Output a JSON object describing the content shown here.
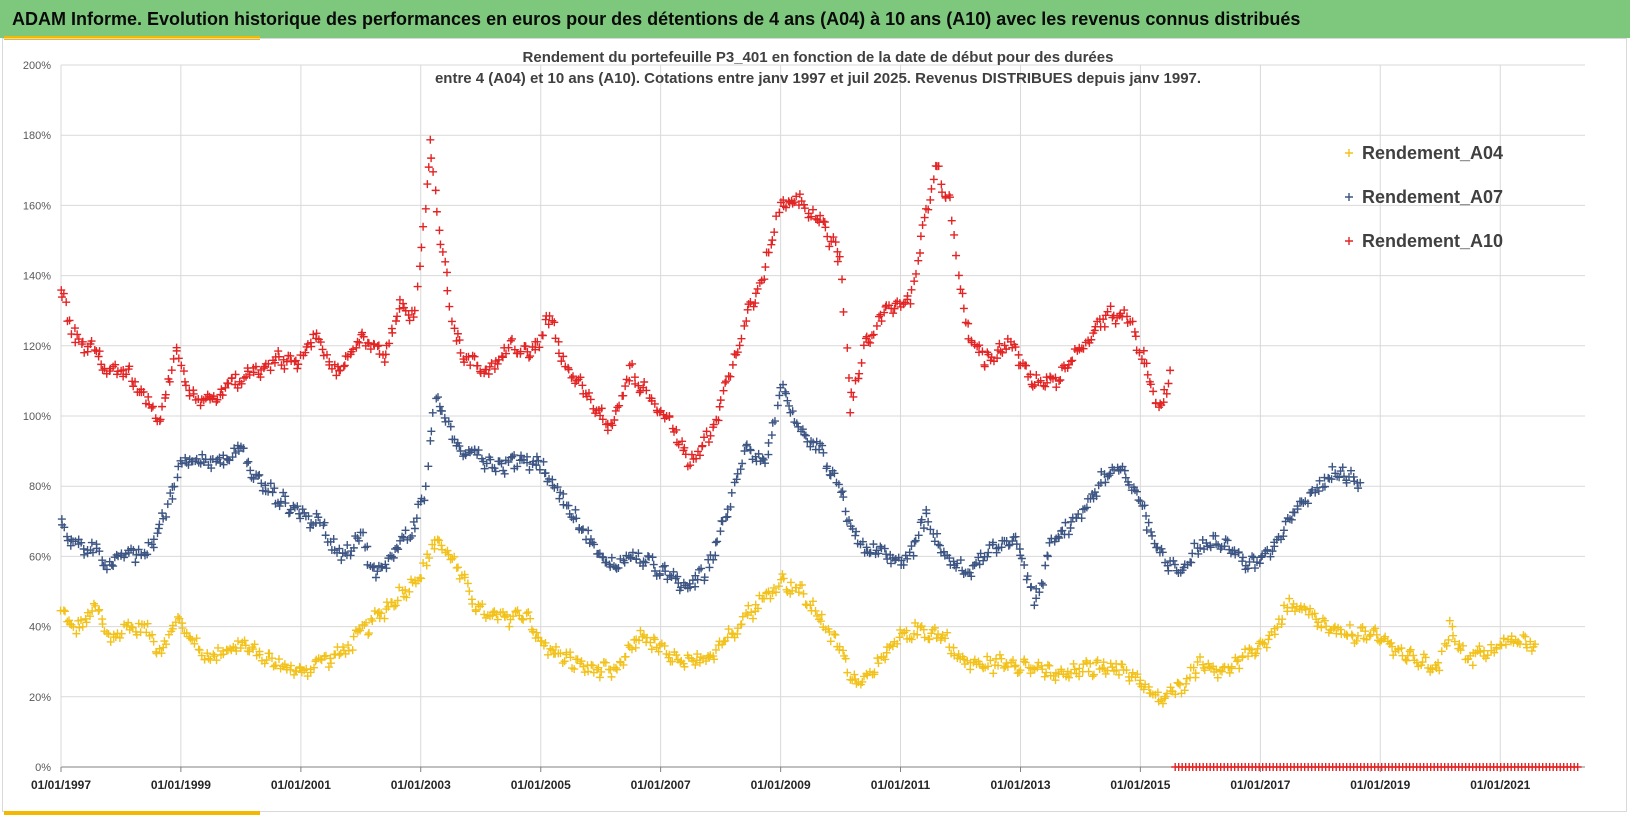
{
  "header": {
    "title": "ADAM Informe. Evolution historique des performances en euros pour des détentions de 4 ans (A04) à 10 ans (A10) avec les revenus connus distribués"
  },
  "chart_data": {
    "type": "scatter",
    "title_lines": [
      "Rendement du portefeuille P3_401 en fonction de la date de début pour des durées",
      "entre 4 (A04) et 10 ans (A10). Cotations entre janv 1997 et juil 2025. Revenus DISTRIBUES depuis janv 1997."
    ],
    "x_axis": {
      "type": "date",
      "min": "1997-01-01",
      "max": "2022-06-01",
      "tick_labels": [
        "01/01/1997",
        "01/01/1999",
        "01/01/2001",
        "01/01/2003",
        "01/01/2005",
        "01/01/2007",
        "01/01/2009",
        "01/01/2011",
        "01/01/2013",
        "01/01/2015",
        "01/01/2017",
        "01/01/2019",
        "01/01/2021"
      ],
      "grid": true
    },
    "y_axis": {
      "min": 0,
      "max": 2,
      "format": "percent",
      "tick_labels": [
        "0%",
        "20%",
        "40%",
        "60%",
        "80%",
        "100%",
        "120%",
        "140%",
        "160%",
        "180%",
        "200%"
      ],
      "grid": true
    },
    "legend_position": "top-right",
    "marker": "plus",
    "series": [
      {
        "name": "Rendement_A04",
        "color": "#f2c21b",
        "points": [
          [
            "1997-01-01",
            0.44
          ],
          [
            "1997-04-01",
            0.39
          ],
          [
            "1997-08-01",
            0.45
          ],
          [
            "1997-11-01",
            0.36
          ],
          [
            "1998-02-01",
            0.4
          ],
          [
            "1998-06-01",
            0.39
          ],
          [
            "1998-09-01",
            0.33
          ],
          [
            "1998-12-01",
            0.42
          ],
          [
            "1999-03-01",
            0.37
          ],
          [
            "1999-06-01",
            0.31
          ],
          [
            "1999-10-01",
            0.33
          ],
          [
            "2000-01-01",
            0.35
          ],
          [
            "2000-06-01",
            0.31
          ],
          [
            "2000-10-01",
            0.28
          ],
          [
            "2001-01-01",
            0.27
          ],
          [
            "2001-05-01",
            0.3
          ],
          [
            "2001-09-01",
            0.32
          ],
          [
            "2002-01-01",
            0.38
          ],
          [
            "2002-06-01",
            0.45
          ],
          [
            "2002-11-01",
            0.52
          ],
          [
            "2003-02-01",
            0.57
          ],
          [
            "2003-04-01",
            0.65
          ],
          [
            "2003-07-01",
            0.6
          ],
          [
            "2003-10-01",
            0.52
          ],
          [
            "2004-01-01",
            0.44
          ],
          [
            "2004-05-01",
            0.42
          ],
          [
            "2004-10-01",
            0.44
          ],
          [
            "2005-01-01",
            0.35
          ],
          [
            "2005-06-01",
            0.31
          ],
          [
            "2005-11-01",
            0.28
          ],
          [
            "2006-04-01",
            0.27
          ],
          [
            "2006-09-01",
            0.38
          ],
          [
            "2007-01-01",
            0.33
          ],
          [
            "2007-06-01",
            0.29
          ],
          [
            "2007-10-01",
            0.31
          ],
          [
            "2008-02-01",
            0.36
          ],
          [
            "2008-06-01",
            0.43
          ],
          [
            "2008-10-01",
            0.48
          ],
          [
            "2009-01-01",
            0.53
          ],
          [
            "2009-05-01",
            0.5
          ],
          [
            "2009-09-01",
            0.42
          ],
          [
            "2010-01-01",
            0.33
          ],
          [
            "2010-04-01",
            0.24
          ],
          [
            "2010-08-01",
            0.28
          ],
          [
            "2011-01-01",
            0.37
          ],
          [
            "2011-05-01",
            0.39
          ],
          [
            "2011-10-01",
            0.37
          ],
          [
            "2012-01-01",
            0.3
          ],
          [
            "2012-06-01",
            0.29
          ],
          [
            "2012-11-01",
            0.3
          ],
          [
            "2013-04-01",
            0.28
          ],
          [
            "2013-09-01",
            0.26
          ],
          [
            "2014-02-01",
            0.28
          ],
          [
            "2014-07-01",
            0.29
          ],
          [
            "2014-12-01",
            0.26
          ],
          [
            "2015-04-01",
            0.19
          ],
          [
            "2015-08-01",
            0.21
          ],
          [
            "2016-01-01",
            0.3
          ],
          [
            "2016-05-01",
            0.27
          ],
          [
            "2016-10-01",
            0.31
          ],
          [
            "2017-03-01",
            0.37
          ],
          [
            "2017-07-01",
            0.46
          ],
          [
            "2017-11-01",
            0.43
          ],
          [
            "2018-04-01",
            0.38
          ],
          [
            "2018-09-01",
            0.38
          ],
          [
            "2019-02-01",
            0.36
          ],
          [
            "2019-07-01",
            0.31
          ],
          [
            "2020-01-01",
            0.28
          ],
          [
            "2020-03-01",
            0.41
          ],
          [
            "2020-06-01",
            0.31
          ],
          [
            "2020-11-01",
            0.33
          ],
          [
            "2021-03-01",
            0.36
          ],
          [
            "2021-08-01",
            0.35
          ]
        ]
      },
      {
        "name": "Rendement_A07",
        "color": "#3d5583",
        "points": [
          [
            "1997-01-01",
            0.69
          ],
          [
            "1997-04-01",
            0.63
          ],
          [
            "1997-08-01",
            0.62
          ],
          [
            "1997-11-01",
            0.57
          ],
          [
            "1998-02-01",
            0.61
          ],
          [
            "1998-06-01",
            0.6
          ],
          [
            "1998-10-01",
            0.72
          ],
          [
            "1999-01-01",
            0.87
          ],
          [
            "1999-05-01",
            0.88
          ],
          [
            "1999-09-01",
            0.86
          ],
          [
            "2000-01-01",
            0.91
          ],
          [
            "2000-04-01",
            0.82
          ],
          [
            "2000-09-01",
            0.76
          ],
          [
            "2001-01-01",
            0.72
          ],
          [
            "2001-05-01",
            0.69
          ],
          [
            "2001-09-01",
            0.6
          ],
          [
            "2002-01-01",
            0.66
          ],
          [
            "2002-04-01",
            0.54
          ],
          [
            "2002-09-01",
            0.64
          ],
          [
            "2002-12-01",
            0.69
          ],
          [
            "2003-02-01",
            0.8
          ],
          [
            "2003-04-01",
            1.06
          ],
          [
            "2003-08-01",
            0.91
          ],
          [
            "2003-12-01",
            0.9
          ],
          [
            "2004-04-01",
            0.85
          ],
          [
            "2004-09-01",
            0.88
          ],
          [
            "2005-01-01",
            0.86
          ],
          [
            "2005-05-01",
            0.77
          ],
          [
            "2005-10-01",
            0.66
          ],
          [
            "2006-03-01",
            0.57
          ],
          [
            "2006-08-01",
            0.6
          ],
          [
            "2007-01-01",
            0.56
          ],
          [
            "2007-06-01",
            0.51
          ],
          [
            "2007-10-01",
            0.55
          ],
          [
            "2008-03-01",
            0.75
          ],
          [
            "2008-06-01",
            0.92
          ],
          [
            "2008-10-01",
            0.86
          ],
          [
            "2009-01-01",
            1.09
          ],
          [
            "2009-05-01",
            0.94
          ],
          [
            "2009-09-01",
            0.9
          ],
          [
            "2010-01-01",
            0.78
          ],
          [
            "2010-05-01",
            0.62
          ],
          [
            "2010-09-01",
            0.61
          ],
          [
            "2011-02-01",
            0.58
          ],
          [
            "2011-06-01",
            0.71
          ],
          [
            "2011-10-01",
            0.6
          ],
          [
            "2012-02-01",
            0.55
          ],
          [
            "2012-07-01",
            0.61
          ],
          [
            "2012-12-01",
            0.66
          ],
          [
            "2013-04-01",
            0.46
          ],
          [
            "2013-07-01",
            0.63
          ],
          [
            "2013-12-01",
            0.7
          ],
          [
            "2014-05-01",
            0.81
          ],
          [
            "2014-09-01",
            0.85
          ],
          [
            "2015-01-01",
            0.76
          ],
          [
            "2015-05-01",
            0.6
          ],
          [
            "2015-09-01",
            0.56
          ],
          [
            "2016-01-01",
            0.63
          ],
          [
            "2016-06-01",
            0.64
          ],
          [
            "2016-11-01",
            0.57
          ],
          [
            "2017-04-01",
            0.63
          ],
          [
            "2017-09-01",
            0.75
          ],
          [
            "2018-01-01",
            0.8
          ],
          [
            "2018-05-01",
            0.85
          ],
          [
            "2018-09-01",
            0.81
          ]
        ]
      },
      {
        "name": "Rendement_A10",
        "color": "#e32424",
        "points": [
          [
            "1997-01-01",
            1.36
          ],
          [
            "1997-04-01",
            1.22
          ],
          [
            "1997-08-01",
            1.18
          ],
          [
            "1997-11-01",
            1.12
          ],
          [
            "1998-02-01",
            1.13
          ],
          [
            "1998-06-01",
            1.05
          ],
          [
            "1998-09-01",
            0.99
          ],
          [
            "1998-12-01",
            1.2
          ],
          [
            "1999-03-01",
            1.06
          ],
          [
            "1999-07-01",
            1.04
          ],
          [
            "1999-11-01",
            1.09
          ],
          [
            "2000-03-01",
            1.12
          ],
          [
            "2000-08-01",
            1.16
          ],
          [
            "2001-01-01",
            1.16
          ],
          [
            "2001-04-01",
            1.23
          ],
          [
            "2001-08-01",
            1.12
          ],
          [
            "2002-01-01",
            1.22
          ],
          [
            "2002-06-01",
            1.17
          ],
          [
            "2002-09-01",
            1.33
          ],
          [
            "2002-12-01",
            1.28
          ],
          [
            "2003-03-01",
            1.78
          ],
          [
            "2003-05-01",
            1.5
          ],
          [
            "2003-08-01",
            1.22
          ],
          [
            "2003-11-01",
            1.15
          ],
          [
            "2004-03-01",
            1.12
          ],
          [
            "2004-07-01",
            1.2
          ],
          [
            "2004-11-01",
            1.17
          ],
          [
            "2005-03-01",
            1.28
          ],
          [
            "2005-06-01",
            1.13
          ],
          [
            "2005-10-01",
            1.07
          ],
          [
            "2006-03-01",
            0.96
          ],
          [
            "2006-07-01",
            1.13
          ],
          [
            "2006-11-01",
            1.05
          ],
          [
            "2007-03-01",
            0.98
          ],
          [
            "2007-07-01",
            0.86
          ],
          [
            "2007-11-01",
            0.95
          ],
          [
            "2008-03-01",
            1.12
          ],
          [
            "2008-06-01",
            1.28
          ],
          [
            "2008-10-01",
            1.42
          ],
          [
            "2009-01-01",
            1.6
          ],
          [
            "2009-05-01",
            1.62
          ],
          [
            "2009-09-01",
            1.55
          ],
          [
            "2010-01-01",
            1.45
          ],
          [
            "2010-03-01",
            1.02
          ],
          [
            "2010-06-01",
            1.2
          ],
          [
            "2010-10-01",
            1.3
          ],
          [
            "2011-03-01",
            1.33
          ],
          [
            "2011-08-01",
            1.72
          ],
          [
            "2011-11-01",
            1.6
          ],
          [
            "2012-02-01",
            1.25
          ],
          [
            "2012-06-01",
            1.15
          ],
          [
            "2012-11-01",
            1.21
          ],
          [
            "2013-04-01",
            1.09
          ],
          [
            "2013-09-01",
            1.11
          ],
          [
            "2014-02-01",
            1.21
          ],
          [
            "2014-07-01",
            1.29
          ],
          [
            "2014-11-01",
            1.27
          ],
          [
            "2015-03-01",
            1.1
          ],
          [
            "2015-05-01",
            1.01
          ],
          [
            "2015-07-01",
            1.13
          ]
        ]
      }
    ],
    "zero_markers": {
      "color": "#e32424",
      "value": 0,
      "x_start": "2015-08-01",
      "x_end": "2022-05-01"
    }
  }
}
